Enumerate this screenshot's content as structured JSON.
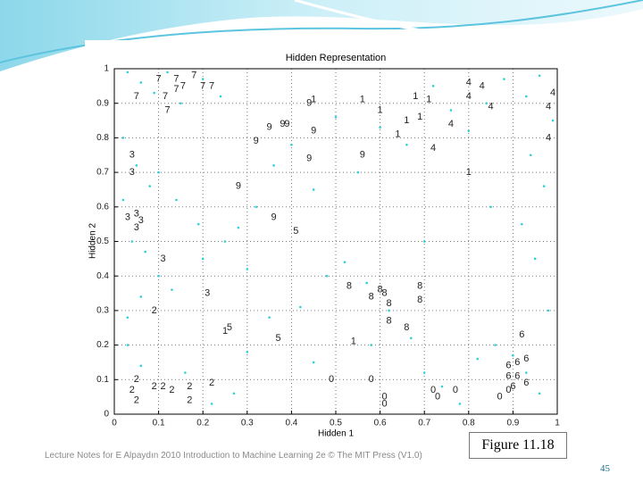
{
  "chart_data": {
    "type": "scatter",
    "title": "Hidden Representation",
    "xlabel": "Hidden 1",
    "ylabel": "Hidden 2",
    "xlim": [
      0,
      1
    ],
    "ylim": [
      0,
      1
    ],
    "xticks": [
      0,
      0.1,
      0.2,
      0.3,
      0.4,
      0.5,
      0.6,
      0.7,
      0.8,
      0.9,
      1
    ],
    "yticks": [
      0,
      0.1,
      0.2,
      0.3,
      0.4,
      0.5,
      0.6,
      0.7,
      0.8,
      0.9,
      1
    ],
    "grid": true,
    "series": [
      {
        "color": "#2fd0d8",
        "x": [
          0.03,
          0.06,
          0.09,
          0.12,
          0.15,
          0.2,
          0.24,
          0.02,
          0.05,
          0.08,
          0.02,
          0.04,
          0.07,
          0.1,
          0.13,
          0.03,
          0.06,
          0.16,
          0.22,
          0.27,
          0.3,
          0.35,
          0.42,
          0.48,
          0.52,
          0.57,
          0.62,
          0.67,
          0.7,
          0.74,
          0.78,
          0.82,
          0.86,
          0.9,
          0.93,
          0.96,
          0.98,
          0.95,
          0.92,
          0.97,
          0.94,
          0.99,
          0.88,
          0.84,
          0.8,
          0.76,
          0.72,
          0.66,
          0.6,
          0.55,
          0.5,
          0.45,
          0.4,
          0.36,
          0.32,
          0.28,
          0.25,
          0.19,
          0.14,
          0.1,
          0.06,
          0.03,
          0.2,
          0.3,
          0.45,
          0.58,
          0.7,
          0.85,
          0.93,
          0.96
        ],
        "y": [
          0.99,
          0.96,
          0.93,
          0.99,
          0.9,
          0.97,
          0.92,
          0.8,
          0.72,
          0.66,
          0.62,
          0.5,
          0.47,
          0.4,
          0.36,
          0.2,
          0.14,
          0.12,
          0.03,
          0.06,
          0.18,
          0.28,
          0.31,
          0.4,
          0.44,
          0.38,
          0.3,
          0.22,
          0.12,
          0.08,
          0.03,
          0.16,
          0.2,
          0.17,
          0.12,
          0.06,
          0.3,
          0.45,
          0.55,
          0.66,
          0.75,
          0.85,
          0.97,
          0.9,
          0.82,
          0.88,
          0.95,
          0.78,
          0.83,
          0.7,
          0.86,
          0.65,
          0.78,
          0.72,
          0.6,
          0.54,
          0.5,
          0.55,
          0.62,
          0.7,
          0.34,
          0.28,
          0.45,
          0.42,
          0.15,
          0.2,
          0.5,
          0.6,
          0.92,
          0.98
        ]
      },
      {
        "name": "7",
        "x": [
          0.1,
          0.14,
          0.155,
          0.18,
          0.2,
          0.22,
          0.05,
          0.115,
          0.14,
          0.12
        ],
        "y": [
          0.97,
          0.97,
          0.95,
          0.98,
          0.95,
          0.95,
          0.92,
          0.92,
          0.94,
          0.88
        ]
      },
      {
        "name": "1",
        "x": [
          0.45,
          0.56,
          0.6,
          0.68,
          0.71,
          0.66,
          0.69,
          0.64,
          0.8,
          0.54,
          0.25
        ],
        "y": [
          0.91,
          0.91,
          0.88,
          0.92,
          0.91,
          0.85,
          0.86,
          0.81,
          0.7,
          0.21,
          0.24
        ]
      },
      {
        "name": "4",
        "x": [
          0.8,
          0.83,
          0.8,
          0.85,
          0.76,
          0.72,
          0.99,
          0.98,
          0.98
        ],
        "y": [
          0.96,
          0.95,
          0.92,
          0.89,
          0.84,
          0.77,
          0.93,
          0.89,
          0.8
        ]
      },
      {
        "name": "9",
        "x": [
          0.35,
          0.38,
          0.39,
          0.45,
          0.32,
          0.44,
          0.56,
          0.28,
          0.36,
          0.44
        ],
        "y": [
          0.83,
          0.84,
          0.84,
          0.82,
          0.79,
          0.74,
          0.75,
          0.66,
          0.57,
          0.9
        ]
      },
      {
        "name": "3",
        "x": [
          0.04,
          0.04,
          0.03,
          0.05,
          0.06,
          0.05,
          0.11,
          0.21
        ],
        "y": [
          0.75,
          0.7,
          0.57,
          0.58,
          0.56,
          0.54,
          0.45,
          0.35
        ]
      },
      {
        "name": "5",
        "x": [
          0.41,
          0.26,
          0.37
        ],
        "y": [
          0.53,
          0.25,
          0.22
        ]
      },
      {
        "name": "2",
        "x": [
          0.09,
          0.05,
          0.04,
          0.09,
          0.11,
          0.13,
          0.17,
          0.22,
          0.05,
          0.17
        ],
        "y": [
          0.3,
          0.1,
          0.07,
          0.08,
          0.08,
          0.07,
          0.08,
          0.09,
          0.04,
          0.04
        ]
      },
      {
        "name": "8",
        "x": [
          0.53,
          0.6,
          0.61,
          0.58,
          0.69,
          0.69,
          0.62,
          0.62,
          0.66
        ],
        "y": [
          0.37,
          0.36,
          0.35,
          0.34,
          0.37,
          0.33,
          0.32,
          0.27,
          0.25
        ]
      },
      {
        "name": "0",
        "x": [
          0.49,
          0.58,
          0.61,
          0.61,
          0.72,
          0.77,
          0.73,
          0.87,
          0.89
        ],
        "y": [
          0.1,
          0.1,
          0.05,
          0.03,
          0.07,
          0.07,
          0.05,
          0.05,
          0.07
        ]
      },
      {
        "name": "6",
        "x": [
          0.92,
          0.89,
          0.91,
          0.93,
          0.89,
          0.91,
          0.9,
          0.93
        ],
        "y": [
          0.23,
          0.14,
          0.15,
          0.16,
          0.11,
          0.11,
          0.08,
          0.09
        ]
      }
    ]
  },
  "footer": {
    "note": "Lecture Notes for E Alpaydın 2010 Introduction to Machine Learning 2e © The MIT Press (V1.0)",
    "figure": "Figure 11.18",
    "page": "45"
  }
}
